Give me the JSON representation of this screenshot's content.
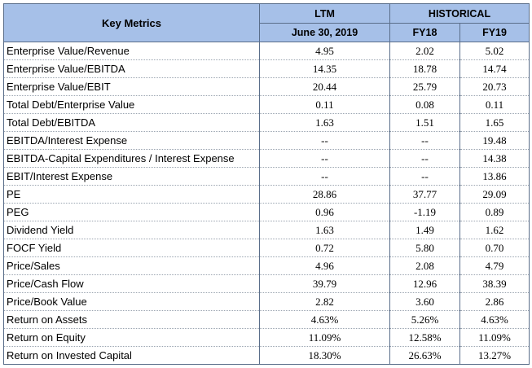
{
  "headers": {
    "key_metrics": "Key Metrics",
    "ltm": "LTM",
    "historical": "HISTORICAL",
    "ltm_date": "June 30, 2019",
    "fy18": "FY18",
    "fy19": "FY19"
  },
  "rows": [
    {
      "name": "Enterprise Value/Revenue",
      "ltm": "4.95",
      "fy18": "2.02",
      "fy19": "5.02"
    },
    {
      "name": "Enterprise Value/EBITDA",
      "ltm": "14.35",
      "fy18": "18.78",
      "fy19": "14.74"
    },
    {
      "name": "Enterprise Value/EBIT",
      "ltm": "20.44",
      "fy18": "25.79",
      "fy19": "20.73"
    },
    {
      "name": "Total Debt/Enterprise Value",
      "ltm": "0.11",
      "fy18": "0.08",
      "fy19": "0.11"
    },
    {
      "name": "Total Debt/EBITDA",
      "ltm": "1.63",
      "fy18": "1.51",
      "fy19": "1.65"
    },
    {
      "name": "EBITDA/Interest Expense",
      "ltm": "--",
      "fy18": "--",
      "fy19": "19.48"
    },
    {
      "name": "EBITDA-Capital Expenditures / Interest Expense",
      "ltm": "--",
      "fy18": "--",
      "fy19": "14.38"
    },
    {
      "name": "EBIT/Interest Expense",
      "ltm": "--",
      "fy18": "--",
      "fy19": "13.86"
    },
    {
      "name": "PE",
      "ltm": "28.86",
      "fy18": "37.77",
      "fy19": "29.09"
    },
    {
      "name": "PEG",
      "ltm": "0.96",
      "fy18": "-1.19",
      "fy19": "0.89"
    },
    {
      "name": "Dividend Yield",
      "ltm": "1.63",
      "fy18": "1.49",
      "fy19": "1.62"
    },
    {
      "name": "FOCF Yield",
      "ltm": "0.72",
      "fy18": "5.80",
      "fy19": "0.70"
    },
    {
      "name": "Price/Sales",
      "ltm": "4.96",
      "fy18": "2.08",
      "fy19": "4.79"
    },
    {
      "name": "Price/Cash Flow",
      "ltm": "39.79",
      "fy18": "12.96",
      "fy19": "38.39"
    },
    {
      "name": "Price/Book Value",
      "ltm": "2.82",
      "fy18": "3.60",
      "fy19": "2.86"
    },
    {
      "name": "Return on Assets",
      "ltm": "4.63%",
      "fy18": "5.26%",
      "fy19": "4.63%"
    },
    {
      "name": "Return on Equity",
      "ltm": "11.09%",
      "fy18": "12.58%",
      "fy19": "11.09%"
    },
    {
      "name": "Return on Invested Capital",
      "ltm": "18.30%",
      "fy18": "26.63%",
      "fy19": "13.27%"
    }
  ]
}
